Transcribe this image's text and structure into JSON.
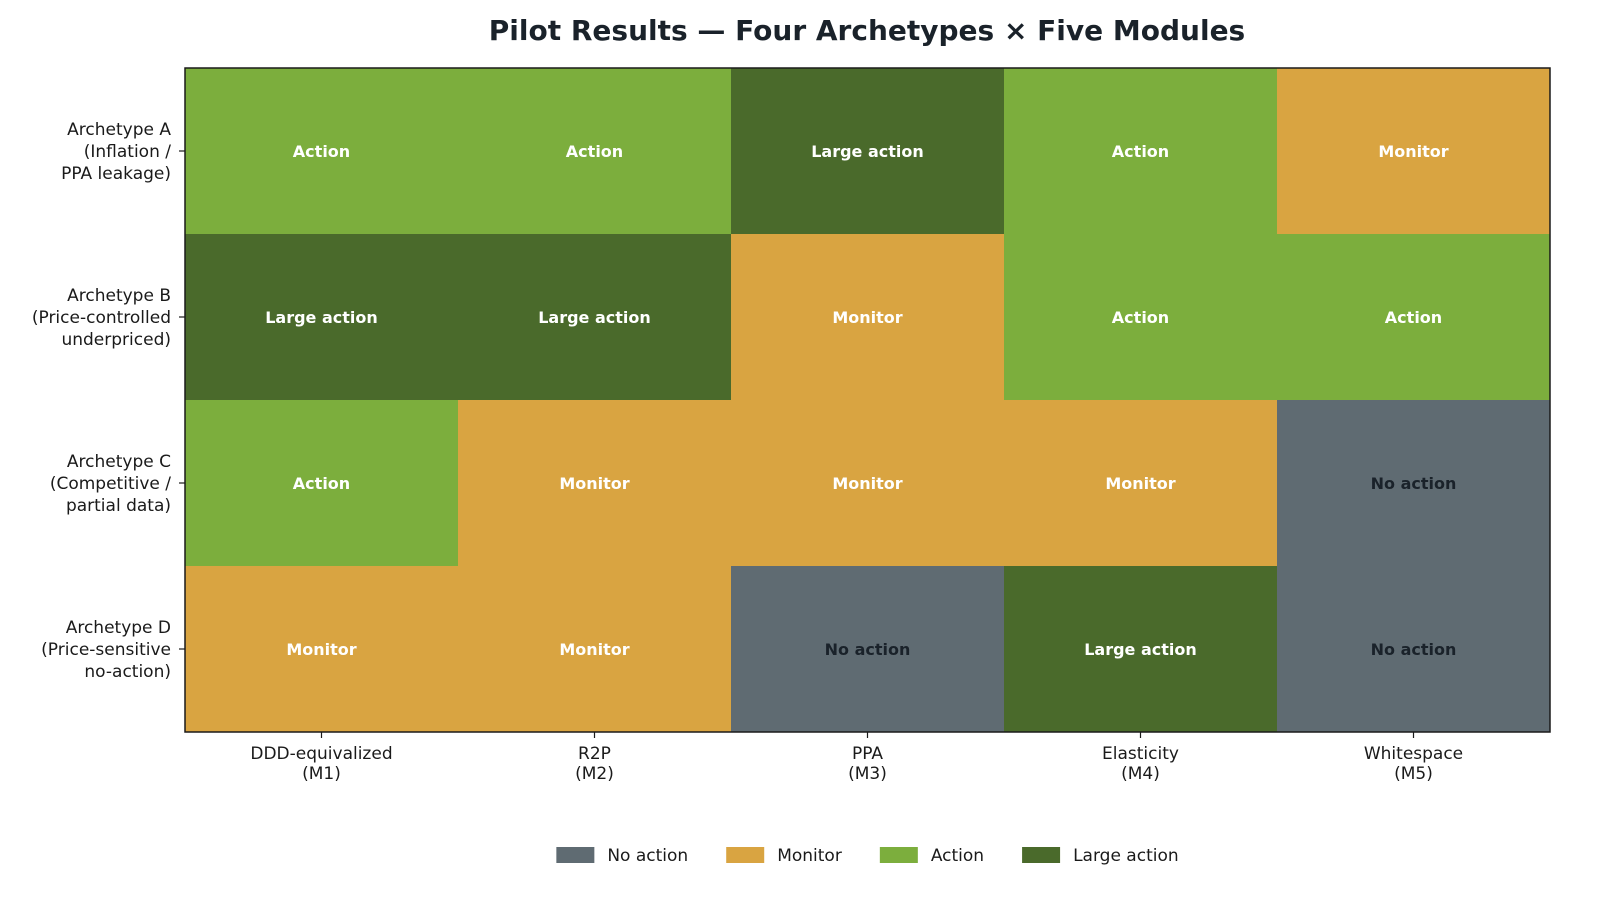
{
  "chart_data": {
    "type": "heatmap",
    "title": "Pilot Results — Four Archetypes × Five Modules",
    "xlabel": "",
    "ylabel": "",
    "columns": [
      [
        "DDD-equivalized",
        "(M1)"
      ],
      [
        "R2P",
        "(M2)"
      ],
      [
        "PPA",
        "(M3)"
      ],
      [
        "Elasticity",
        "(M4)"
      ],
      [
        "Whitespace",
        "(M5)"
      ]
    ],
    "rows": [
      [
        "Archetype A",
        "(Inflation /",
        "PPA leakage)"
      ],
      [
        "Archetype B",
        "(Price-controlled",
        "underpriced)"
      ],
      [
        "Archetype C",
        "(Competitive /",
        "partial data)"
      ],
      [
        "Archetype D",
        "(Price-sensitive",
        "no-action)"
      ]
    ],
    "levels": [
      "No action",
      "Monitor",
      "Action",
      "Large action"
    ],
    "values": [
      [
        2,
        2,
        3,
        2,
        1
      ],
      [
        3,
        3,
        1,
        2,
        2
      ],
      [
        2,
        1,
        1,
        1,
        0
      ],
      [
        1,
        1,
        0,
        3,
        0
      ]
    ],
    "colors": [
      "#5f6b72",
      "#d9a441",
      "#7cae3d",
      "#4a6a2b"
    ],
    "cell_text_colors": [
      "#1a222a",
      "#ffffff",
      "#ffffff",
      "#ffffff"
    ],
    "legend_position": "bottom-center",
    "grid": false
  }
}
